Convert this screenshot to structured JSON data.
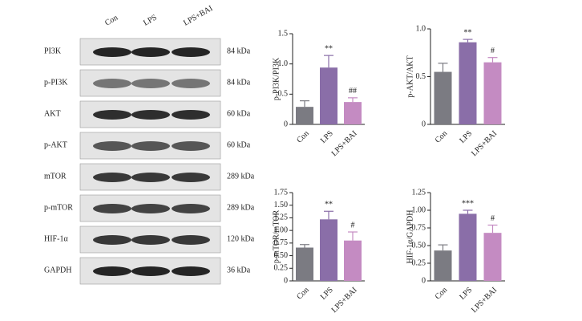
{
  "blot": {
    "lanes": [
      "Con",
      "LPS",
      "LPS+BAI"
    ],
    "rows": [
      {
        "label": "PI3K",
        "size": "84 kDa"
      },
      {
        "label": "p-PI3K",
        "size": "84 kDa"
      },
      {
        "label": "AKT",
        "size": "60 kDa"
      },
      {
        "label": "p-AKT",
        "size": "60 kDa"
      },
      {
        "label": "mTOR",
        "size": "289 kDa"
      },
      {
        "label": "p-mTOR",
        "size": "289 kDa"
      },
      {
        "label": "HIF-1α",
        "size": "120 kDa"
      },
      {
        "label": "GAPDH",
        "size": "36 kDa"
      }
    ]
  },
  "chart_data": [
    {
      "type": "bar",
      "y_label": "p-PI3K/PI3K",
      "categories": [
        "Con",
        "LPS",
        "LPS+BAI"
      ],
      "values": [
        0.29,
        0.94,
        0.37
      ],
      "errors": [
        0.1,
        0.2,
        0.07
      ],
      "annotations": [
        null,
        "**",
        "##"
      ],
      "colors": [
        "#7b7b82",
        "#8a6ea8",
        "#c48bc2"
      ],
      "ylim": [
        0,
        1.5
      ],
      "yticks": [
        0,
        0.5,
        {
          "value": 1,
          "label": "1.0"
        },
        1.5
      ]
    },
    {
      "type": "bar",
      "y_label": "p-AKT/AKT",
      "categories": [
        "Con",
        "LPS",
        "LPS+BAI"
      ],
      "values": [
        0.55,
        0.86,
        0.65
      ],
      "errors": [
        0.09,
        0.03,
        0.05
      ],
      "annotations": [
        null,
        "**",
        "#"
      ],
      "colors": [
        "#7b7b82",
        "#8a6ea8",
        "#c48bc2"
      ],
      "ylim": [
        0,
        1
      ],
      "yticks": [
        0,
        0.5,
        {
          "value": 1,
          "label": "1.0"
        }
      ]
    },
    {
      "type": "bar",
      "y_label": "p-mTOR/mTOR",
      "categories": [
        "Con",
        "LPS",
        "LPS+BAI"
      ],
      "values": [
        0.66,
        1.22,
        0.8
      ],
      "errors": [
        0.06,
        0.16,
        0.17
      ],
      "annotations": [
        null,
        "**",
        "#"
      ],
      "colors": [
        "#7b7b82",
        "#8a6ea8",
        "#c48bc2"
      ],
      "ylim": [
        0,
        1.75
      ],
      "yticks": [
        0,
        0.25,
        {
          "value": 0.5,
          "label": "0.50"
        },
        0.75,
        {
          "value": 1,
          "label": "1.00"
        },
        1.25,
        {
          "value": 1.5,
          "label": "1.50"
        },
        1.75
      ]
    },
    {
      "type": "bar",
      "y_label": "HIF-1α/GAPDH",
      "categories": [
        "Con",
        "LPS",
        "LPS+BAI"
      ],
      "values": [
        0.43,
        0.95,
        0.68
      ],
      "errors": [
        0.08,
        0.05,
        0.11
      ],
      "annotations": [
        null,
        "***",
        "#"
      ],
      "colors": [
        "#7b7b82",
        "#8a6ea8",
        "#c48bc2"
      ],
      "ylim": [
        0,
        1.25
      ],
      "yticks": [
        0,
        0.25,
        {
          "value": 0.5,
          "label": "0.50"
        },
        0.75,
        {
          "value": 1,
          "label": "1.00"
        },
        1.25
      ]
    }
  ]
}
